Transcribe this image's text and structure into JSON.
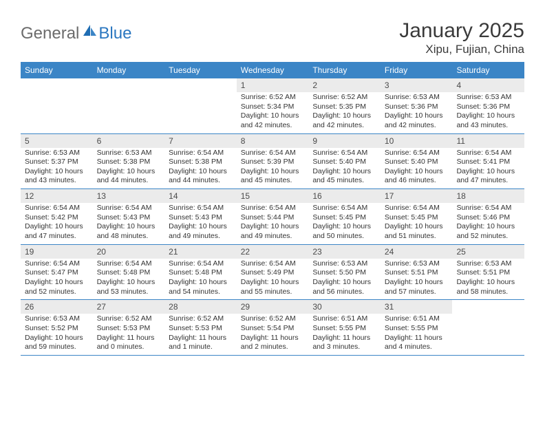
{
  "brand": {
    "part1": "General",
    "part2": "Blue"
  },
  "title": "January 2025",
  "location": "Xipu, Fujian, China",
  "style": {
    "header_bg": "#3b85c6",
    "header_fg": "#ffffff",
    "daynum_bg": "#ebebeb",
    "daynum_fg": "#4a4a4a",
    "text_fg": "#333333",
    "rule_color": "#3b85c6",
    "page_bg": "#ffffff",
    "title_fg": "#3a3a3a",
    "logo_gray": "#6b6b6b",
    "logo_blue": "#2b77c0",
    "month_title_fontsize": 30,
    "location_fontsize": 17,
    "weekday_fontsize": 12,
    "daynum_fontsize": 12,
    "body_fontsize": 10.5
  },
  "weekdays": [
    "Sunday",
    "Monday",
    "Tuesday",
    "Wednesday",
    "Thursday",
    "Friday",
    "Saturday"
  ],
  "weeks": [
    [
      {
        "n": "",
        "lines": []
      },
      {
        "n": "",
        "lines": []
      },
      {
        "n": "",
        "lines": []
      },
      {
        "n": "1",
        "lines": [
          "Sunrise: 6:52 AM",
          "Sunset: 5:34 PM",
          "Daylight: 10 hours",
          "and 42 minutes."
        ]
      },
      {
        "n": "2",
        "lines": [
          "Sunrise: 6:52 AM",
          "Sunset: 5:35 PM",
          "Daylight: 10 hours",
          "and 42 minutes."
        ]
      },
      {
        "n": "3",
        "lines": [
          "Sunrise: 6:53 AM",
          "Sunset: 5:36 PM",
          "Daylight: 10 hours",
          "and 42 minutes."
        ]
      },
      {
        "n": "4",
        "lines": [
          "Sunrise: 6:53 AM",
          "Sunset: 5:36 PM",
          "Daylight: 10 hours",
          "and 43 minutes."
        ]
      }
    ],
    [
      {
        "n": "5",
        "lines": [
          "Sunrise: 6:53 AM",
          "Sunset: 5:37 PM",
          "Daylight: 10 hours",
          "and 43 minutes."
        ]
      },
      {
        "n": "6",
        "lines": [
          "Sunrise: 6:53 AM",
          "Sunset: 5:38 PM",
          "Daylight: 10 hours",
          "and 44 minutes."
        ]
      },
      {
        "n": "7",
        "lines": [
          "Sunrise: 6:54 AM",
          "Sunset: 5:38 PM",
          "Daylight: 10 hours",
          "and 44 minutes."
        ]
      },
      {
        "n": "8",
        "lines": [
          "Sunrise: 6:54 AM",
          "Sunset: 5:39 PM",
          "Daylight: 10 hours",
          "and 45 minutes."
        ]
      },
      {
        "n": "9",
        "lines": [
          "Sunrise: 6:54 AM",
          "Sunset: 5:40 PM",
          "Daylight: 10 hours",
          "and 45 minutes."
        ]
      },
      {
        "n": "10",
        "lines": [
          "Sunrise: 6:54 AM",
          "Sunset: 5:40 PM",
          "Daylight: 10 hours",
          "and 46 minutes."
        ]
      },
      {
        "n": "11",
        "lines": [
          "Sunrise: 6:54 AM",
          "Sunset: 5:41 PM",
          "Daylight: 10 hours",
          "and 47 minutes."
        ]
      }
    ],
    [
      {
        "n": "12",
        "lines": [
          "Sunrise: 6:54 AM",
          "Sunset: 5:42 PM",
          "Daylight: 10 hours",
          "and 47 minutes."
        ]
      },
      {
        "n": "13",
        "lines": [
          "Sunrise: 6:54 AM",
          "Sunset: 5:43 PM",
          "Daylight: 10 hours",
          "and 48 minutes."
        ]
      },
      {
        "n": "14",
        "lines": [
          "Sunrise: 6:54 AM",
          "Sunset: 5:43 PM",
          "Daylight: 10 hours",
          "and 49 minutes."
        ]
      },
      {
        "n": "15",
        "lines": [
          "Sunrise: 6:54 AM",
          "Sunset: 5:44 PM",
          "Daylight: 10 hours",
          "and 49 minutes."
        ]
      },
      {
        "n": "16",
        "lines": [
          "Sunrise: 6:54 AM",
          "Sunset: 5:45 PM",
          "Daylight: 10 hours",
          "and 50 minutes."
        ]
      },
      {
        "n": "17",
        "lines": [
          "Sunrise: 6:54 AM",
          "Sunset: 5:45 PM",
          "Daylight: 10 hours",
          "and 51 minutes."
        ]
      },
      {
        "n": "18",
        "lines": [
          "Sunrise: 6:54 AM",
          "Sunset: 5:46 PM",
          "Daylight: 10 hours",
          "and 52 minutes."
        ]
      }
    ],
    [
      {
        "n": "19",
        "lines": [
          "Sunrise: 6:54 AM",
          "Sunset: 5:47 PM",
          "Daylight: 10 hours",
          "and 52 minutes."
        ]
      },
      {
        "n": "20",
        "lines": [
          "Sunrise: 6:54 AM",
          "Sunset: 5:48 PM",
          "Daylight: 10 hours",
          "and 53 minutes."
        ]
      },
      {
        "n": "21",
        "lines": [
          "Sunrise: 6:54 AM",
          "Sunset: 5:48 PM",
          "Daylight: 10 hours",
          "and 54 minutes."
        ]
      },
      {
        "n": "22",
        "lines": [
          "Sunrise: 6:54 AM",
          "Sunset: 5:49 PM",
          "Daylight: 10 hours",
          "and 55 minutes."
        ]
      },
      {
        "n": "23",
        "lines": [
          "Sunrise: 6:53 AM",
          "Sunset: 5:50 PM",
          "Daylight: 10 hours",
          "and 56 minutes."
        ]
      },
      {
        "n": "24",
        "lines": [
          "Sunrise: 6:53 AM",
          "Sunset: 5:51 PM",
          "Daylight: 10 hours",
          "and 57 minutes."
        ]
      },
      {
        "n": "25",
        "lines": [
          "Sunrise: 6:53 AM",
          "Sunset: 5:51 PM",
          "Daylight: 10 hours",
          "and 58 minutes."
        ]
      }
    ],
    [
      {
        "n": "26",
        "lines": [
          "Sunrise: 6:53 AM",
          "Sunset: 5:52 PM",
          "Daylight: 10 hours",
          "and 59 minutes."
        ]
      },
      {
        "n": "27",
        "lines": [
          "Sunrise: 6:52 AM",
          "Sunset: 5:53 PM",
          "Daylight: 11 hours",
          "and 0 minutes."
        ]
      },
      {
        "n": "28",
        "lines": [
          "Sunrise: 6:52 AM",
          "Sunset: 5:53 PM",
          "Daylight: 11 hours",
          "and 1 minute."
        ]
      },
      {
        "n": "29",
        "lines": [
          "Sunrise: 6:52 AM",
          "Sunset: 5:54 PM",
          "Daylight: 11 hours",
          "and 2 minutes."
        ]
      },
      {
        "n": "30",
        "lines": [
          "Sunrise: 6:51 AM",
          "Sunset: 5:55 PM",
          "Daylight: 11 hours",
          "and 3 minutes."
        ]
      },
      {
        "n": "31",
        "lines": [
          "Sunrise: 6:51 AM",
          "Sunset: 5:55 PM",
          "Daylight: 11 hours",
          "and 4 minutes."
        ]
      },
      {
        "n": "",
        "lines": []
      }
    ]
  ]
}
